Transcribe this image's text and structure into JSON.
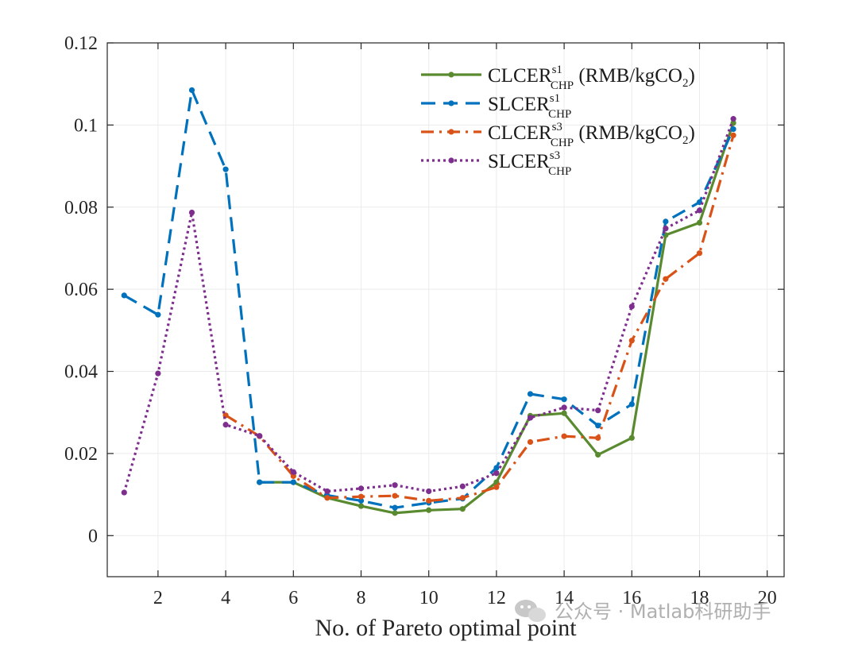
{
  "watermark": "公众号 · Matlab科研助手",
  "chart_data": {
    "type": "line",
    "title": "",
    "xlabel": "No. of Pareto optimal point",
    "ylabel": "",
    "xlim": [
      0.5,
      20.5
    ],
    "ylim": [
      -0.01,
      0.12
    ],
    "xticks": [
      2,
      4,
      6,
      8,
      10,
      12,
      14,
      16,
      18,
      20
    ],
    "yticks": [
      0,
      0.02,
      0.04,
      0.06,
      0.08,
      0.1,
      0.12
    ],
    "ytick_labels": [
      "0",
      "0.02",
      "0.04",
      "0.06",
      "0.08",
      "0.1",
      "0.12"
    ],
    "grid": true,
    "legend_position": "top-right",
    "series": [
      {
        "name": "CLCER(s1,CHP) (RMB/kgCO2)",
        "legend": {
          "base": "CLCER",
          "sup": "s1",
          "sub": "CHP",
          "unit_pre": " (RMB/kgCO",
          "unit_sub": "2",
          "unit_post": ")"
        },
        "color": "#5a8a2f",
        "dash": "solid",
        "x": [
          5,
          6,
          7,
          8,
          9,
          10,
          11,
          12,
          13,
          14,
          15,
          16,
          17,
          18,
          19
        ],
        "values": [
          0.013,
          0.013,
          0.0092,
          0.0072,
          0.0055,
          0.0062,
          0.0065,
          0.013,
          0.0292,
          0.0298,
          0.0197,
          0.0238,
          0.0732,
          0.0762,
          0.1005
        ]
      },
      {
        "name": "SLCER(s1,CHP)",
        "legend": {
          "base": "SLCER",
          "sup": "s1",
          "sub": "CHP",
          "unit_pre": "",
          "unit_sub": "",
          "unit_post": ""
        },
        "color": "#0072bd",
        "dash": "dashed",
        "x": [
          1,
          2,
          3,
          4,
          5,
          6,
          7,
          8,
          9,
          10,
          11,
          12,
          13,
          14,
          15,
          16,
          17,
          18,
          19
        ],
        "values": [
          0.0585,
          0.0538,
          0.1085,
          0.0892,
          0.013,
          0.013,
          0.0098,
          0.0085,
          0.0068,
          0.008,
          0.009,
          0.0165,
          0.0345,
          0.0332,
          0.0268,
          0.032,
          0.0765,
          0.0812,
          0.099
        ]
      },
      {
        "name": "CLCER(s3,CHP) (RMB/kgCO2)",
        "legend": {
          "base": "CLCER",
          "sup": "s3",
          "sub": "CHP",
          "unit_pre": " (RMB/kgCO",
          "unit_sub": "2",
          "unit_post": ")"
        },
        "color": "#d95319",
        "dash": "dashdot",
        "x": [
          4,
          5,
          6,
          7,
          8,
          9,
          10,
          11,
          12,
          13,
          14,
          15,
          16,
          17,
          18,
          19
        ],
        "values": [
          0.0293,
          0.0242,
          0.0145,
          0.0092,
          0.0095,
          0.0097,
          0.0085,
          0.0092,
          0.0118,
          0.0228,
          0.0242,
          0.0238,
          0.0475,
          0.0625,
          0.0688,
          0.0975
        ]
      },
      {
        "name": "SLCER(s3,CHP)",
        "legend": {
          "base": "SLCER",
          "sup": "s3",
          "sub": "CHP",
          "unit_pre": "",
          "unit_sub": "",
          "unit_post": ""
        },
        "color": "#7e2f8e",
        "dash": "dotted",
        "x": [
          1,
          2,
          3,
          4,
          5,
          6,
          7,
          8,
          9,
          10,
          11,
          12,
          13,
          14,
          15,
          16,
          17,
          18,
          19
        ],
        "values": [
          0.0105,
          0.0395,
          0.0787,
          0.027,
          0.0243,
          0.0155,
          0.0108,
          0.0115,
          0.0123,
          0.0108,
          0.012,
          0.0152,
          0.0287,
          0.0312,
          0.0305,
          0.0558,
          0.0748,
          0.0792,
          0.1015
        ]
      }
    ]
  }
}
